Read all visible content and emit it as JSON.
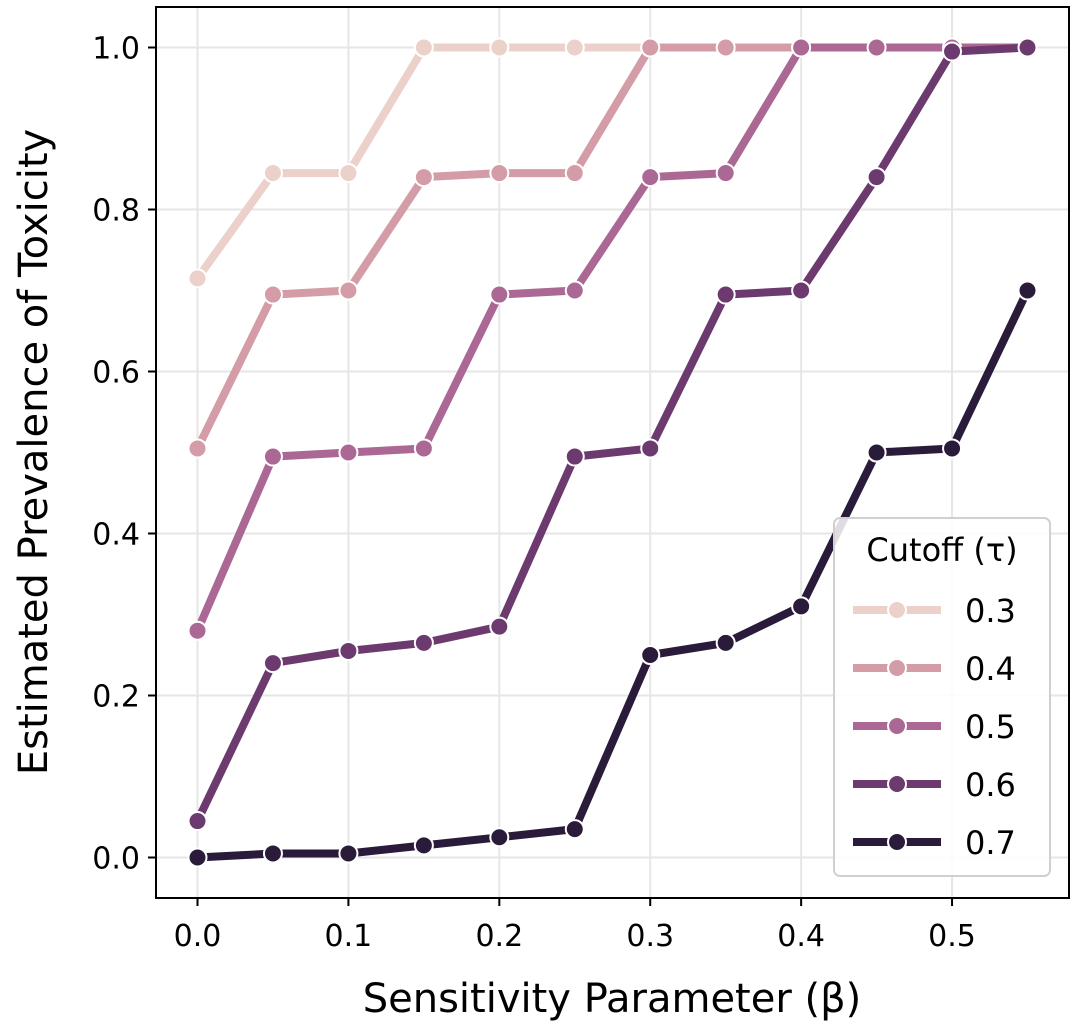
{
  "chart_data": {
    "type": "line",
    "title": "",
    "xlabel": "Sensitivity Parameter (β)",
    "ylabel": "Estimated Prevalence of Toxicity",
    "xlim": [
      -0.0275,
      0.5775
    ],
    "ylim": [
      -0.05,
      1.05
    ],
    "xticks": [
      0.0,
      0.1,
      0.2,
      0.3,
      0.4,
      0.5
    ],
    "xtick_labels": [
      "0.0",
      "0.1",
      "0.2",
      "0.3",
      "0.4",
      "0.5"
    ],
    "yticks": [
      0.0,
      0.2,
      0.4,
      0.6,
      0.8,
      1.0
    ],
    "ytick_labels": [
      "0.0",
      "0.2",
      "0.4",
      "0.6",
      "0.8",
      "1.0"
    ],
    "grid": true,
    "legend": {
      "title": "Cutoff (τ)",
      "placement": "lower-right"
    },
    "x": [
      0.0,
      0.05,
      0.1,
      0.15,
      0.2,
      0.25,
      0.3,
      0.35,
      0.4,
      0.45,
      0.5,
      0.55
    ],
    "series": [
      {
        "name": "0.3",
        "color": "#ecd1cb",
        "values": [
          0.715,
          0.845,
          0.845,
          1.0,
          1.0,
          1.0,
          1.0,
          1.0,
          1.0,
          1.0,
          1.0,
          1.0
        ]
      },
      {
        "name": "0.4",
        "color": "#d39ca7",
        "values": [
          0.505,
          0.695,
          0.7,
          0.84,
          0.845,
          0.845,
          1.0,
          1.0,
          1.0,
          1.0,
          1.0,
          1.0
        ]
      },
      {
        "name": "0.5",
        "color": "#ab6895",
        "values": [
          0.28,
          0.495,
          0.5,
          0.505,
          0.695,
          0.7,
          0.84,
          0.845,
          1.0,
          1.0,
          1.0,
          1.0
        ]
      },
      {
        "name": "0.6",
        "color": "#6c3a6e",
        "values": [
          0.045,
          0.24,
          0.255,
          0.265,
          0.285,
          0.495,
          0.505,
          0.695,
          0.7,
          0.84,
          0.995,
          1.0
        ]
      },
      {
        "name": "0.7",
        "color": "#2a1b3b",
        "values": [
          0.0,
          0.005,
          0.005,
          0.015,
          0.025,
          0.035,
          0.25,
          0.265,
          0.31,
          0.5,
          0.505,
          0.7
        ]
      }
    ]
  }
}
